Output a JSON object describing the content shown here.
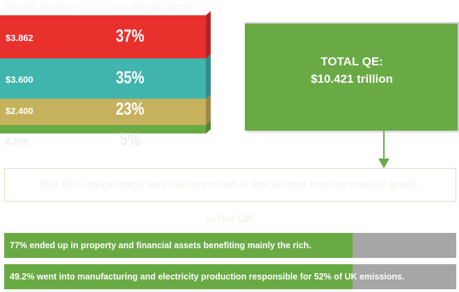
{
  "chart_data": {
    "type": "bar",
    "subtype": "stacked",
    "header_value": "Total QE ($ trillions)",
    "header_share": "% of Total QE Spends",
    "segments": [
      {
        "value": "$3.862",
        "value_num": 3.862,
        "share": "37%",
        "share_num": 37,
        "color": "#e9302d",
        "value_color": "#ffffff",
        "share_color": "#ffffff"
      },
      {
        "value": "$3.600",
        "value_num": 3.6,
        "share": "35%",
        "share_num": 35,
        "color": "#3fb5ad",
        "value_color": "#ffffff",
        "share_color": "#ffffff"
      },
      {
        "value": "$2.400",
        "value_num": 2.4,
        "share": "23%",
        "share_num": 23,
        "color": "#c6b15c",
        "value_color": "#ffffff",
        "share_color": "#ffffff"
      },
      {
        "value": "$.559",
        "value_num": 0.559,
        "share": "5%",
        "share_num": 5,
        "color": "#6aaa45",
        "value_color": "#eeeeee",
        "share_color": "#eeeeee"
      }
    ],
    "total": {
      "label": "TOTAL QE:",
      "value": "$10.421 trillion"
    },
    "banner": "But this investment was not invested in social and environmental goals.",
    "subheading": "In the UK",
    "facts": [
      {
        "text": "77% ended up in property and financial assets benefiting mainly the rich.",
        "percent": 77
      },
      {
        "text": "49.2% went into manufacturing and electricity production responsible for 52% of UK emissions.",
        "percent": 49.2
      }
    ],
    "colors": {
      "green": "#6aaa45",
      "grey": "#a6a6a6"
    }
  }
}
